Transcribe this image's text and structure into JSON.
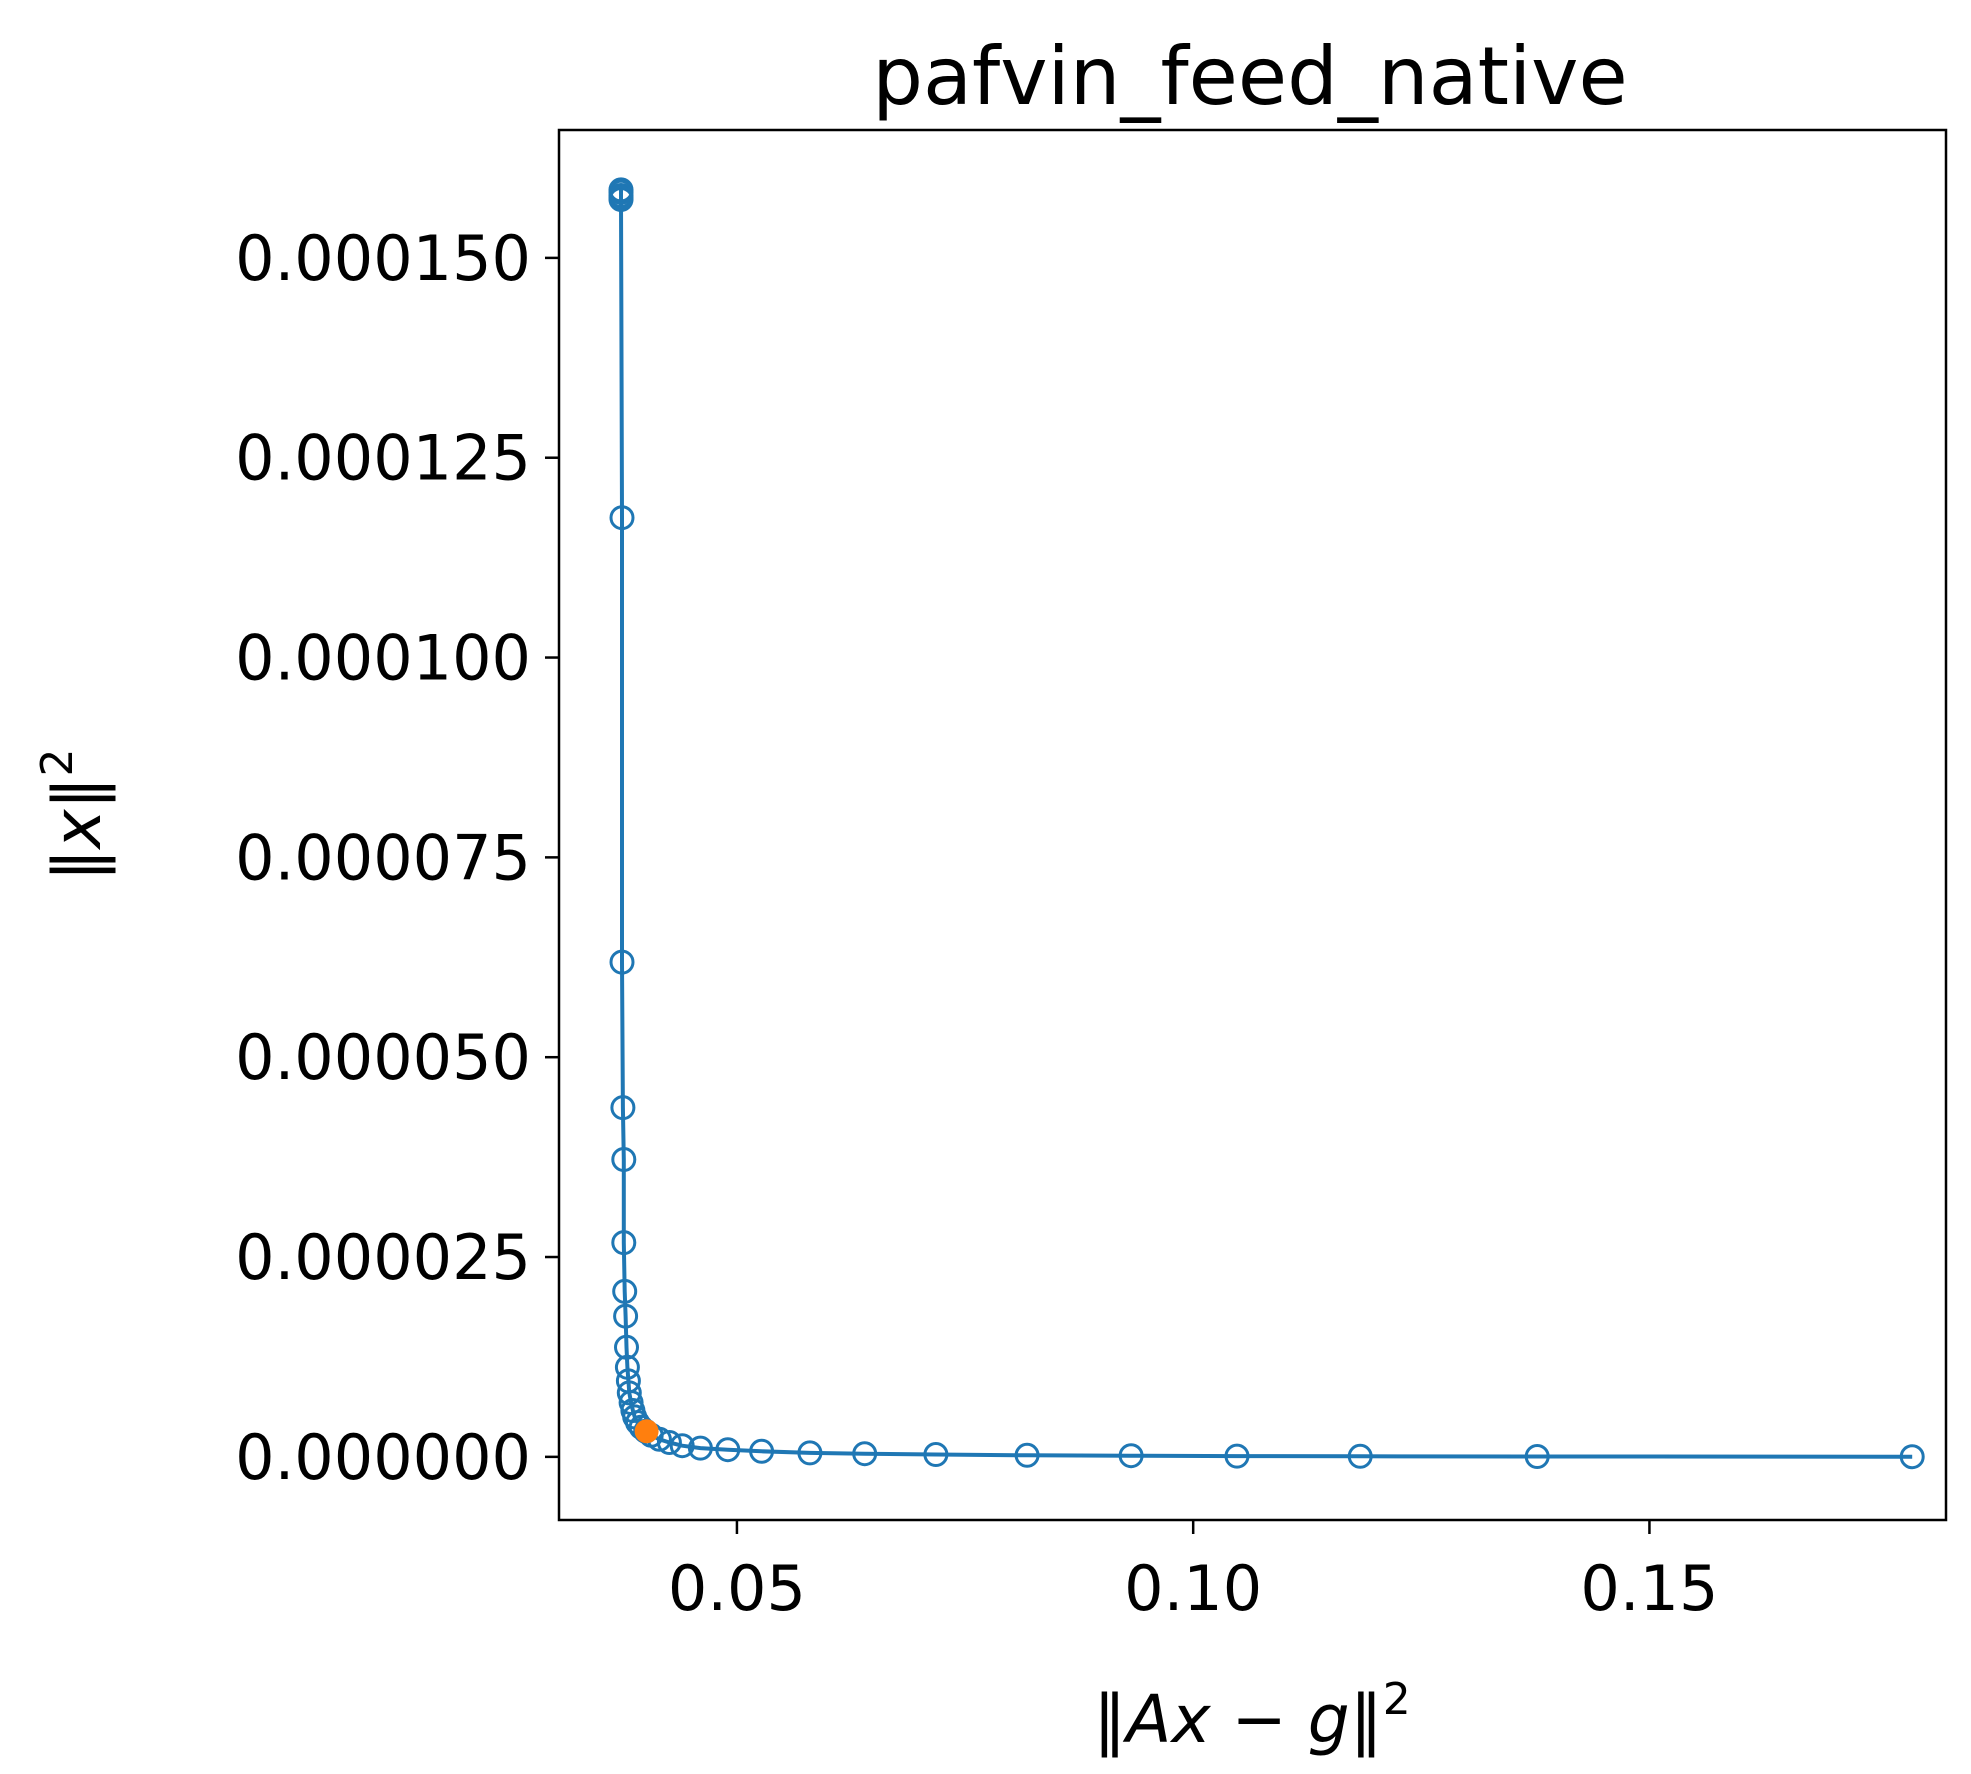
{
  "chart_data": {
    "type": "scatter",
    "title": "pafvin_feed_native",
    "xlabel": "‖Ax − g‖²",
    "ylabel": "‖x‖²",
    "xlim": [
      0.0305,
      0.1825
    ],
    "ylim": [
      -7.9e-06,
      0.000166
    ],
    "x_ticks": [
      0.05,
      0.1,
      0.15
    ],
    "x_tick_labels": [
      "0.05",
      "0.10",
      "0.15"
    ],
    "y_ticks": [
      0.0,
      2.5e-05,
      5e-05,
      7.5e-05,
      0.0001,
      0.000125,
      0.00015
    ],
    "y_tick_labels": [
      "0.000000",
      "0.000025",
      "0.000050",
      "0.000075",
      "0.000100",
      "0.000125",
      "0.000150"
    ],
    "grid": false,
    "series": [
      {
        "color": "#1f77b4",
        "marker": "open-circle",
        "line": true,
        "x": [
          0.0373,
          0.0373,
          0.0373,
          0.0373,
          0.0373,
          0.0374,
          0.0374,
          0.0375,
          0.0376,
          0.0376,
          0.0377,
          0.0378,
          0.0379,
          0.038,
          0.0381,
          0.0382,
          0.0384,
          0.0386,
          0.0388,
          0.0391,
          0.0395,
          0.04,
          0.0406,
          0.0415,
          0.0426,
          0.044,
          0.046,
          0.049,
          0.0527,
          0.058,
          0.064,
          0.0718,
          0.0818,
          0.0932,
          0.1048,
          0.1183,
          0.1377,
          0.1788
        ],
        "y": [
          0.0001585,
          0.0001582,
          0.0001578,
          0.0001573,
          0.0001575,
          0.0001175,
          6.19e-05,
          4.37e-05,
          3.72e-05,
          2.68e-05,
          2.07e-05,
          1.76e-05,
          1.37e-05,
          1.12e-05,
          9.5e-06,
          8e-06,
          6.8e-06,
          5.8e-06,
          5e-06,
          4.3e-06,
          3.7e-06,
          3.2e-06,
          2.7e-06,
          2.2e-06,
          1.8e-06,
          1.4e-06,
          1.1e-06,
          9e-07,
          7e-07,
          5e-07,
          4e-07,
          3e-07,
          2e-07,
          1.5e-07,
          1e-07,
          7e-08,
          4e-08,
          2e-08
        ]
      },
      {
        "color": "#ff7f0e",
        "marker": "filled-circle",
        "line": false,
        "x": [
          0.0401
        ],
        "y": [
          3.2e-06
        ]
      }
    ]
  }
}
